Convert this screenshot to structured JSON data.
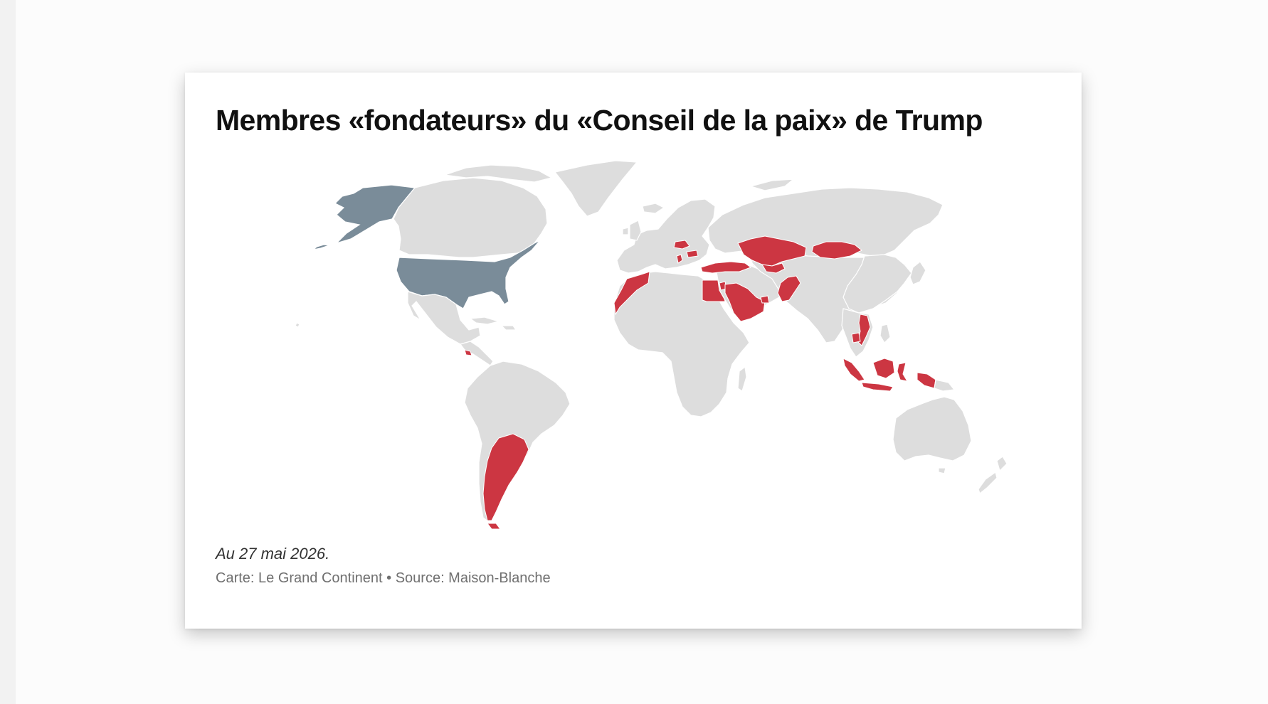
{
  "figure": {
    "title": "Membres «fondateurs» du «Conseil de la paix» de Trump",
    "note": "Au 27 mai 2026.",
    "credit": "Carte: Le Grand Continent • Source: Maison-Blanche"
  },
  "map": {
    "projection": "world",
    "colors": {
      "land": "#dddddd",
      "highlight_usa": "#7a8c99",
      "member": "#cc3642",
      "background": "#ffffff"
    },
    "highlighted_country": "United States",
    "member_countries": [
      "Argentina",
      "Morocco",
      "Egypt",
      "Saudi Arabia",
      "Qatar",
      "Bahrain",
      "United Arab Emirates",
      "Jordan",
      "Türkiye",
      "Kazakhstan",
      "Uzbekistan",
      "Azerbaijan",
      "Armenia",
      "Mongolia",
      "Pakistan",
      "Hungary",
      "Bulgaria",
      "Kosovo",
      "Albania",
      "Indonesia",
      "Vietnam",
      "Cambodia",
      "El Salvador"
    ]
  }
}
